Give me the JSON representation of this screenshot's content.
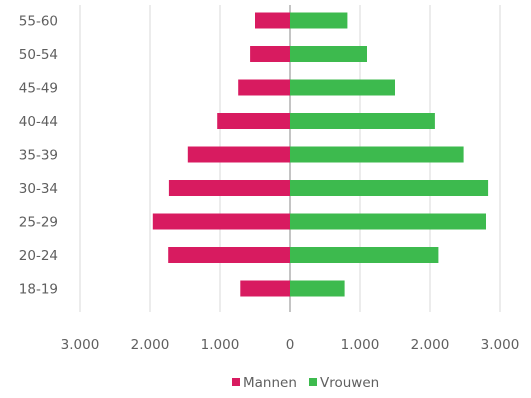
{
  "chart_data": {
    "type": "bar",
    "orientation": "horizontal",
    "categories": [
      "55-60",
      "50-54",
      "45-49",
      "40-44",
      "35-39",
      "30-34",
      "25-29",
      "20-24",
      "18-19"
    ],
    "series": [
      {
        "name": "Mannen",
        "values": [
          500,
          570,
          740,
          1040,
          1460,
          1730,
          1960,
          1740,
          710
        ],
        "color": "#d81b60"
      },
      {
        "name": "Vrouwen",
        "values": [
          820,
          1100,
          1500,
          2070,
          2480,
          2830,
          2800,
          2120,
          780
        ],
        "color": "#3dba4e"
      }
    ],
    "x_tick_labels": [
      "3.000",
      "2.000",
      "1.000",
      "0",
      "1.000",
      "2.000",
      "3.000"
    ],
    "xlim": [
      -3000,
      3000
    ],
    "grid": "vertical",
    "legend_position": "bottom-center"
  }
}
